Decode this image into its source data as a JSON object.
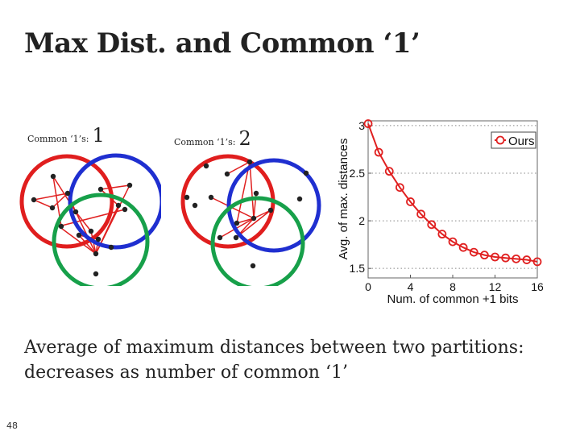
{
  "slide": {
    "title": "Max Dist. and Common ‘1’",
    "page_number": "48",
    "description_lines": [
      "Average of maximum distances between two partitions:",
      "decreases as number of common ‘1’"
    ]
  },
  "venn_diagrams": [
    {
      "caption_label": "Common ‘1’s:",
      "caption_value": "1"
    },
    {
      "caption_label": "Common ‘1’s:",
      "caption_value": "2"
    }
  ],
  "colors": {
    "red": "#e01e1e",
    "blue": "#1f2fd0",
    "green": "#17a04a",
    "series": "#e02020"
  },
  "chart_data": {
    "type": "line",
    "xlabel": "Num. of common +1 bits",
    "ylabel": "Avg. of max. distances",
    "xlim": [
      0,
      16
    ],
    "ylim": [
      1.4,
      3.05
    ],
    "xticks": [
      0,
      4,
      8,
      12,
      16
    ],
    "yticks": [
      1.5,
      2,
      2.5,
      3
    ],
    "ytick_labels": [
      "1.5",
      "2",
      "2.5",
      "3"
    ],
    "legend": "top-right",
    "series": [
      {
        "name": "Ours",
        "marker": "circle",
        "x": [
          0,
          1,
          2,
          3,
          4,
          5,
          6,
          7,
          8,
          9,
          10,
          11,
          12,
          13,
          14,
          15,
          16
        ],
        "values": [
          3.02,
          2.72,
          2.52,
          2.35,
          2.2,
          2.07,
          1.96,
          1.86,
          1.78,
          1.72,
          1.67,
          1.64,
          1.62,
          1.61,
          1.6,
          1.59,
          1.57
        ]
      }
    ]
  }
}
